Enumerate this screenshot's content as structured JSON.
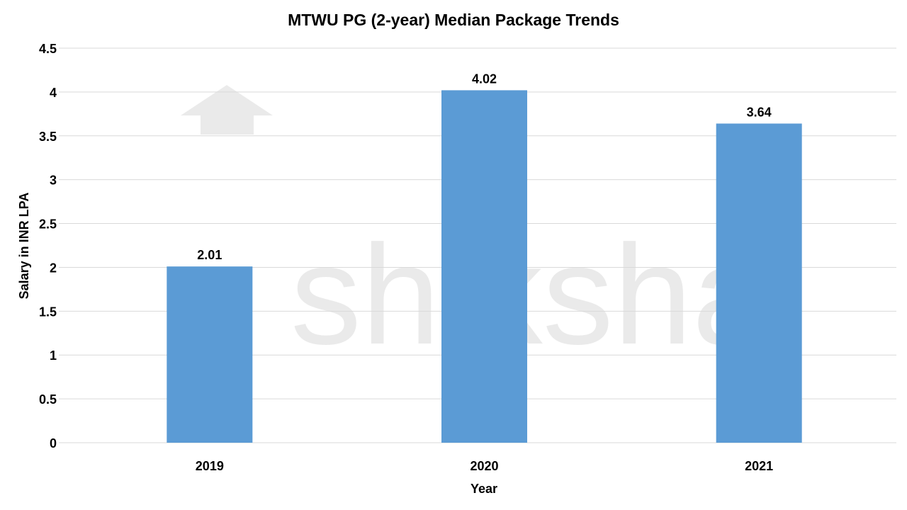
{
  "watermark": "shiksha",
  "chart_data": {
    "type": "bar",
    "title": "MTWU PG (2-year) Median Package Trends",
    "xlabel": "Year",
    "ylabel": "Salary in INR LPA",
    "categories": [
      "2019",
      "2020",
      "2021"
    ],
    "values": [
      2.01,
      4.02,
      3.64
    ],
    "data_labels": [
      "2.01",
      "4.02",
      "3.64"
    ],
    "ylim": [
      0,
      4.5
    ],
    "yticks": [
      "0",
      "0.5",
      "1",
      "1.5",
      "2",
      "2.5",
      "3",
      "3.5",
      "4",
      "4.5"
    ],
    "grid": true,
    "legend": "none",
    "bar_color": "#5B9BD5",
    "grid_color": "#D9D9D9"
  }
}
